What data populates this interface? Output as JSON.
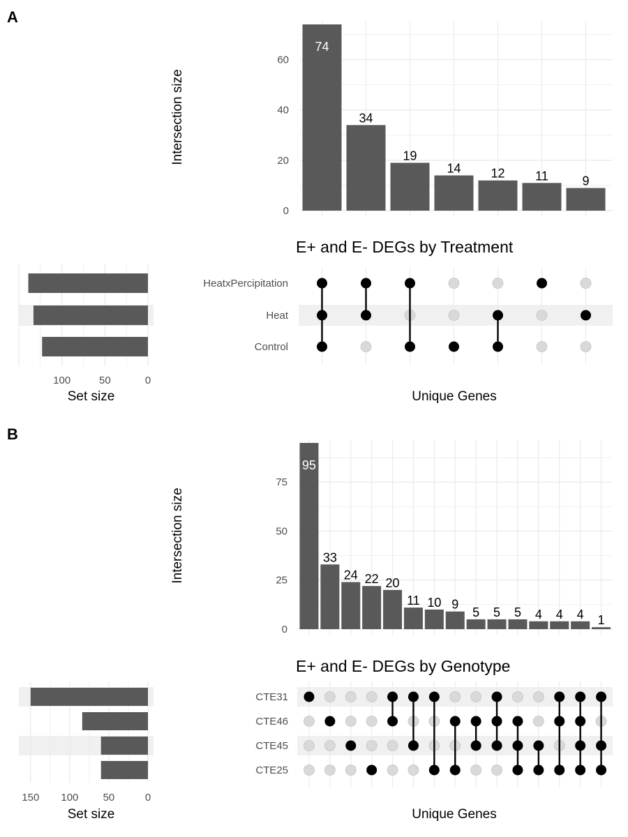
{
  "chart_data": [
    {
      "panel": "A",
      "type": "bar",
      "title": "E+ and E- DEGs by Treatment",
      "xlabel": "Unique Genes",
      "ylabel": "Intersection size",
      "set_size_label": "Set size",
      "ylim": [
        0,
        74
      ],
      "yticks": [
        0,
        20,
        40,
        60
      ],
      "sets": [
        "HeatxPercipitation",
        "Heat",
        "Control"
      ],
      "set_sizes": [
        139,
        133,
        123
      ],
      "set_size_ticks": [
        100,
        50,
        0
      ],
      "set_size_max": 150,
      "intersections": [
        {
          "value": 74,
          "sets": [
            "HeatxPercipitation",
            "Heat",
            "Control"
          ]
        },
        {
          "value": 34,
          "sets": [
            "HeatxPercipitation",
            "Heat"
          ]
        },
        {
          "value": 19,
          "sets": [
            "HeatxPercipitation",
            "Control"
          ]
        },
        {
          "value": 14,
          "sets": [
            "Control"
          ]
        },
        {
          "value": 12,
          "sets": [
            "Heat",
            "Control"
          ]
        },
        {
          "value": 11,
          "sets": [
            "HeatxPercipitation"
          ]
        },
        {
          "value": 9,
          "sets": [
            "Heat"
          ]
        }
      ]
    },
    {
      "panel": "B",
      "type": "bar",
      "title": "E+ and E- DEGs by Genotype",
      "xlabel": "Unique Genes",
      "ylabel": "Intersection size",
      "set_size_label": "Set size",
      "ylim": [
        0,
        95
      ],
      "yticks": [
        0,
        25,
        50,
        75
      ],
      "sets": [
        "CTE31",
        "CTE46",
        "CTE45",
        "CTE25"
      ],
      "set_sizes": [
        150,
        84,
        60,
        60
      ],
      "set_size_ticks": [
        150,
        100,
        50,
        0
      ],
      "set_size_max": 165,
      "intersections": [
        {
          "value": 95,
          "sets": [
            "CTE31"
          ]
        },
        {
          "value": 33,
          "sets": [
            "CTE46"
          ]
        },
        {
          "value": 24,
          "sets": [
            "CTE45"
          ]
        },
        {
          "value": 22,
          "sets": [
            "CTE25"
          ]
        },
        {
          "value": 20,
          "sets": [
            "CTE31",
            "CTE46"
          ]
        },
        {
          "value": 11,
          "sets": [
            "CTE31",
            "CTE45"
          ]
        },
        {
          "value": 10,
          "sets": [
            "CTE31",
            "CTE25"
          ]
        },
        {
          "value": 9,
          "sets": [
            "CTE46",
            "CTE25"
          ]
        },
        {
          "value": 5,
          "sets": [
            "CTE46",
            "CTE45"
          ]
        },
        {
          "value": 5,
          "sets": [
            "CTE31",
            "CTE46",
            "CTE45"
          ]
        },
        {
          "value": 5,
          "sets": [
            "CTE46",
            "CTE45",
            "CTE25"
          ]
        },
        {
          "value": 4,
          "sets": [
            "CTE45",
            "CTE25"
          ]
        },
        {
          "value": 4,
          "sets": [
            "CTE31",
            "CTE46",
            "CTE25"
          ]
        },
        {
          "value": 4,
          "sets": [
            "CTE31",
            "CTE46",
            "CTE45",
            "CTE25"
          ]
        },
        {
          "value": 1,
          "sets": [
            "CTE31",
            "CTE45",
            "CTE25"
          ]
        }
      ]
    }
  ]
}
